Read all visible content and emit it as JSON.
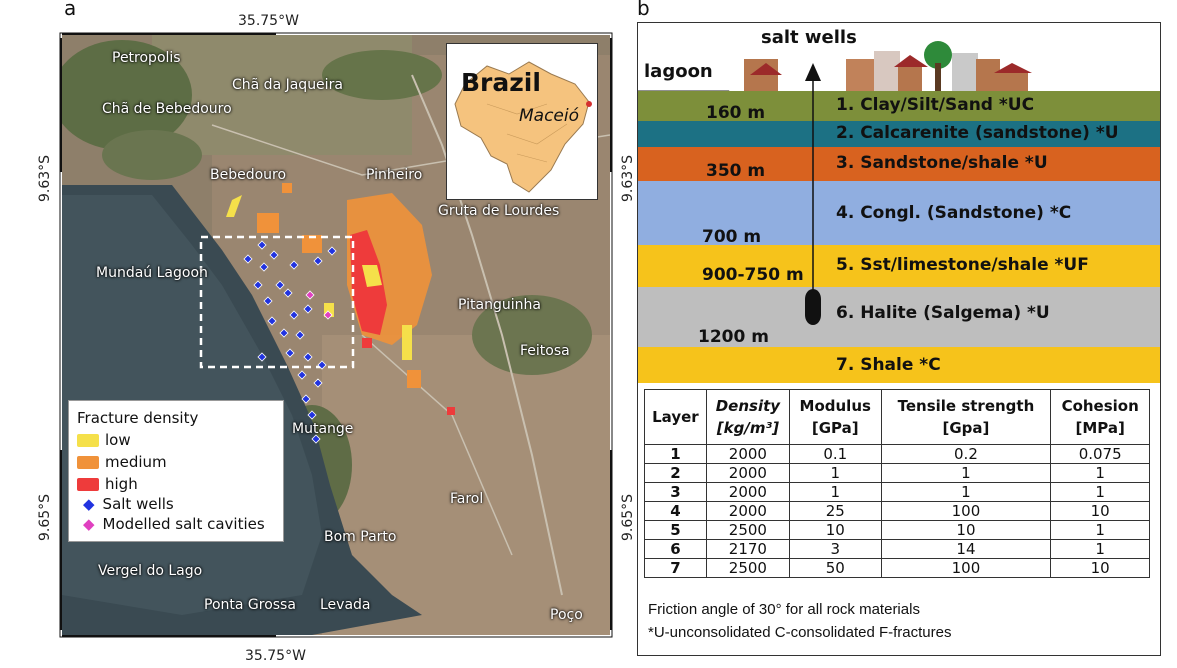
{
  "panel_a": {
    "letter": "a",
    "coords": {
      "top_lon": "35.75°W",
      "bottom_lon": "35.75°W",
      "left_lat_1": "9.63°S",
      "left_lat_2": "9.65°S",
      "right_lat_1": "9.63°S",
      "right_lat_2": "9.65°S"
    },
    "places": [
      "Petropolis",
      "Chã da Jaqueira",
      "Chã de Bebedouro",
      "Bebedouro",
      "Pinheiro",
      "Gruta de Lourdes",
      "Mundaú Lagoon",
      "Pitanguinha",
      "Feitosa",
      "Mutange",
      "Farol",
      "Bom Parto",
      "Vergel do Lago",
      "Ponta Grossa",
      "Levada",
      "Poço"
    ],
    "inset": {
      "country": "Brazil",
      "city": "Maceió"
    },
    "legend": {
      "title": "Fracture density",
      "items": [
        {
          "label": "low",
          "color": "#f5e04a"
        },
        {
          "label": "medium",
          "color": "#f0923a"
        },
        {
          "label": "high",
          "color": "#ee3b3b"
        },
        {
          "label": "Salt wells",
          "color": "#2133e0"
        },
        {
          "label": "Modelled salt cavities",
          "color": "#e040c0"
        }
      ]
    }
  },
  "panel_b": {
    "letter": "b",
    "surface": {
      "lagoon": "lagoon",
      "salt_wells": "salt wells"
    },
    "layers": [
      {
        "label": "1. Clay/Silt/Sand *UC",
        "color": "#7d8f3a"
      },
      {
        "label": "2. Calcarenite (sandstone) *U",
        "color": "#1c7184"
      },
      {
        "label": "3. Sandstone/shale *U",
        "color": "#d8621f"
      },
      {
        "label": "4. Congl. (Sandstone) *C",
        "color": "#90aee0"
      },
      {
        "label": "5. Sst/limestone/shale *UF",
        "color": "#f6c31b"
      },
      {
        "label": "6. Halite (Salgema) *U",
        "color": "#bebebe"
      },
      {
        "label": "7. Shale *C",
        "color": "#f6c31b"
      }
    ],
    "depths": [
      "160 m",
      "350 m",
      "700 m",
      "900-750 m",
      "1200 m"
    ],
    "table": {
      "headers": [
        {
          "line1": "Layer",
          "line2": ""
        },
        {
          "line1": "Density",
          "line2": "[kg/m³]"
        },
        {
          "line1": "Modulus",
          "line2": "[GPa]"
        },
        {
          "line1": "Tensile strength",
          "line2": "[Gpa]"
        },
        {
          "line1": "Cohesion",
          "line2": "[MPa]"
        }
      ],
      "rows": [
        [
          "1",
          "2000",
          "0.1",
          "0.2",
          "0.075"
        ],
        [
          "2",
          "2000",
          "1",
          "1",
          "1"
        ],
        [
          "3",
          "2000",
          "1",
          "1",
          "1"
        ],
        [
          "4",
          "2000",
          "25",
          "100",
          "10"
        ],
        [
          "5",
          "2500",
          "10",
          "10",
          "1"
        ],
        [
          "6",
          "2170",
          "3",
          "14",
          "1"
        ],
        [
          "7",
          "2500",
          "50",
          "100",
          "10"
        ]
      ]
    },
    "notes": [
      "Friction angle of 30° for all rock materials",
      "*U-unconsolidated C-consolidated F-fractures"
    ]
  }
}
